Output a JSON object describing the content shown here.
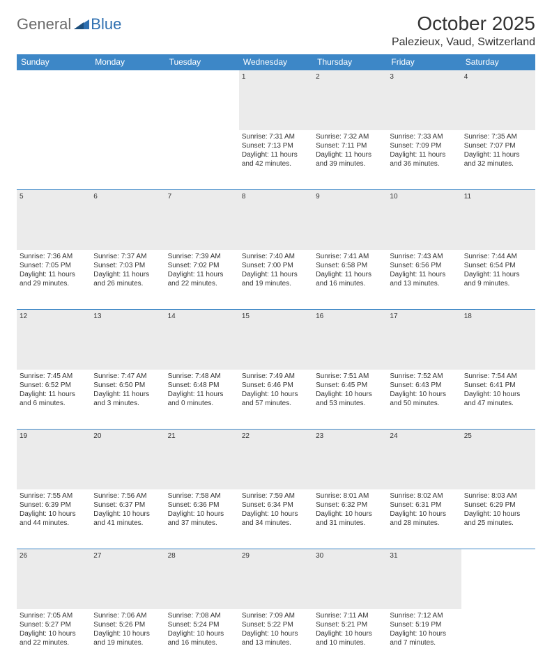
{
  "logo": {
    "word1": "General",
    "word2": "Blue"
  },
  "title": "October 2025",
  "location": "Palezieux, Vaud, Switzerland",
  "colors": {
    "header_bg": "#3d87c7",
    "header_text": "#ffffff",
    "daynum_bg": "#ebebeb",
    "border": "#3d87c7",
    "text": "#333333",
    "logo_gray": "#6b6b6b",
    "logo_blue": "#2e6fb0",
    "page_bg": "#ffffff"
  },
  "weekdays": [
    "Sunday",
    "Monday",
    "Tuesday",
    "Wednesday",
    "Thursday",
    "Friday",
    "Saturday"
  ],
  "weeks": [
    {
      "nums": [
        "",
        "",
        "",
        "1",
        "2",
        "3",
        "4"
      ],
      "cells": [
        null,
        null,
        null,
        {
          "sunrise": "Sunrise: 7:31 AM",
          "sunset": "Sunset: 7:13 PM",
          "d1": "Daylight: 11 hours",
          "d2": "and 42 minutes."
        },
        {
          "sunrise": "Sunrise: 7:32 AM",
          "sunset": "Sunset: 7:11 PM",
          "d1": "Daylight: 11 hours",
          "d2": "and 39 minutes."
        },
        {
          "sunrise": "Sunrise: 7:33 AM",
          "sunset": "Sunset: 7:09 PM",
          "d1": "Daylight: 11 hours",
          "d2": "and 36 minutes."
        },
        {
          "sunrise": "Sunrise: 7:35 AM",
          "sunset": "Sunset: 7:07 PM",
          "d1": "Daylight: 11 hours",
          "d2": "and 32 minutes."
        }
      ]
    },
    {
      "nums": [
        "5",
        "6",
        "7",
        "8",
        "9",
        "10",
        "11"
      ],
      "cells": [
        {
          "sunrise": "Sunrise: 7:36 AM",
          "sunset": "Sunset: 7:05 PM",
          "d1": "Daylight: 11 hours",
          "d2": "and 29 minutes."
        },
        {
          "sunrise": "Sunrise: 7:37 AM",
          "sunset": "Sunset: 7:03 PM",
          "d1": "Daylight: 11 hours",
          "d2": "and 26 minutes."
        },
        {
          "sunrise": "Sunrise: 7:39 AM",
          "sunset": "Sunset: 7:02 PM",
          "d1": "Daylight: 11 hours",
          "d2": "and 22 minutes."
        },
        {
          "sunrise": "Sunrise: 7:40 AM",
          "sunset": "Sunset: 7:00 PM",
          "d1": "Daylight: 11 hours",
          "d2": "and 19 minutes."
        },
        {
          "sunrise": "Sunrise: 7:41 AM",
          "sunset": "Sunset: 6:58 PM",
          "d1": "Daylight: 11 hours",
          "d2": "and 16 minutes."
        },
        {
          "sunrise": "Sunrise: 7:43 AM",
          "sunset": "Sunset: 6:56 PM",
          "d1": "Daylight: 11 hours",
          "d2": "and 13 minutes."
        },
        {
          "sunrise": "Sunrise: 7:44 AM",
          "sunset": "Sunset: 6:54 PM",
          "d1": "Daylight: 11 hours",
          "d2": "and 9 minutes."
        }
      ]
    },
    {
      "nums": [
        "12",
        "13",
        "14",
        "15",
        "16",
        "17",
        "18"
      ],
      "cells": [
        {
          "sunrise": "Sunrise: 7:45 AM",
          "sunset": "Sunset: 6:52 PM",
          "d1": "Daylight: 11 hours",
          "d2": "and 6 minutes."
        },
        {
          "sunrise": "Sunrise: 7:47 AM",
          "sunset": "Sunset: 6:50 PM",
          "d1": "Daylight: 11 hours",
          "d2": "and 3 minutes."
        },
        {
          "sunrise": "Sunrise: 7:48 AM",
          "sunset": "Sunset: 6:48 PM",
          "d1": "Daylight: 11 hours",
          "d2": "and 0 minutes."
        },
        {
          "sunrise": "Sunrise: 7:49 AM",
          "sunset": "Sunset: 6:46 PM",
          "d1": "Daylight: 10 hours",
          "d2": "and 57 minutes."
        },
        {
          "sunrise": "Sunrise: 7:51 AM",
          "sunset": "Sunset: 6:45 PM",
          "d1": "Daylight: 10 hours",
          "d2": "and 53 minutes."
        },
        {
          "sunrise": "Sunrise: 7:52 AM",
          "sunset": "Sunset: 6:43 PM",
          "d1": "Daylight: 10 hours",
          "d2": "and 50 minutes."
        },
        {
          "sunrise": "Sunrise: 7:54 AM",
          "sunset": "Sunset: 6:41 PM",
          "d1": "Daylight: 10 hours",
          "d2": "and 47 minutes."
        }
      ]
    },
    {
      "nums": [
        "19",
        "20",
        "21",
        "22",
        "23",
        "24",
        "25"
      ],
      "cells": [
        {
          "sunrise": "Sunrise: 7:55 AM",
          "sunset": "Sunset: 6:39 PM",
          "d1": "Daylight: 10 hours",
          "d2": "and 44 minutes."
        },
        {
          "sunrise": "Sunrise: 7:56 AM",
          "sunset": "Sunset: 6:37 PM",
          "d1": "Daylight: 10 hours",
          "d2": "and 41 minutes."
        },
        {
          "sunrise": "Sunrise: 7:58 AM",
          "sunset": "Sunset: 6:36 PM",
          "d1": "Daylight: 10 hours",
          "d2": "and 37 minutes."
        },
        {
          "sunrise": "Sunrise: 7:59 AM",
          "sunset": "Sunset: 6:34 PM",
          "d1": "Daylight: 10 hours",
          "d2": "and 34 minutes."
        },
        {
          "sunrise": "Sunrise: 8:01 AM",
          "sunset": "Sunset: 6:32 PM",
          "d1": "Daylight: 10 hours",
          "d2": "and 31 minutes."
        },
        {
          "sunrise": "Sunrise: 8:02 AM",
          "sunset": "Sunset: 6:31 PM",
          "d1": "Daylight: 10 hours",
          "d2": "and 28 minutes."
        },
        {
          "sunrise": "Sunrise: 8:03 AM",
          "sunset": "Sunset: 6:29 PM",
          "d1": "Daylight: 10 hours",
          "d2": "and 25 minutes."
        }
      ]
    },
    {
      "nums": [
        "26",
        "27",
        "28",
        "29",
        "30",
        "31",
        ""
      ],
      "cells": [
        {
          "sunrise": "Sunrise: 7:05 AM",
          "sunset": "Sunset: 5:27 PM",
          "d1": "Daylight: 10 hours",
          "d2": "and 22 minutes."
        },
        {
          "sunrise": "Sunrise: 7:06 AM",
          "sunset": "Sunset: 5:26 PM",
          "d1": "Daylight: 10 hours",
          "d2": "and 19 minutes."
        },
        {
          "sunrise": "Sunrise: 7:08 AM",
          "sunset": "Sunset: 5:24 PM",
          "d1": "Daylight: 10 hours",
          "d2": "and 16 minutes."
        },
        {
          "sunrise": "Sunrise: 7:09 AM",
          "sunset": "Sunset: 5:22 PM",
          "d1": "Daylight: 10 hours",
          "d2": "and 13 minutes."
        },
        {
          "sunrise": "Sunrise: 7:11 AM",
          "sunset": "Sunset: 5:21 PM",
          "d1": "Daylight: 10 hours",
          "d2": "and 10 minutes."
        },
        {
          "sunrise": "Sunrise: 7:12 AM",
          "sunset": "Sunset: 5:19 PM",
          "d1": "Daylight: 10 hours",
          "d2": "and 7 minutes."
        },
        null
      ]
    }
  ]
}
